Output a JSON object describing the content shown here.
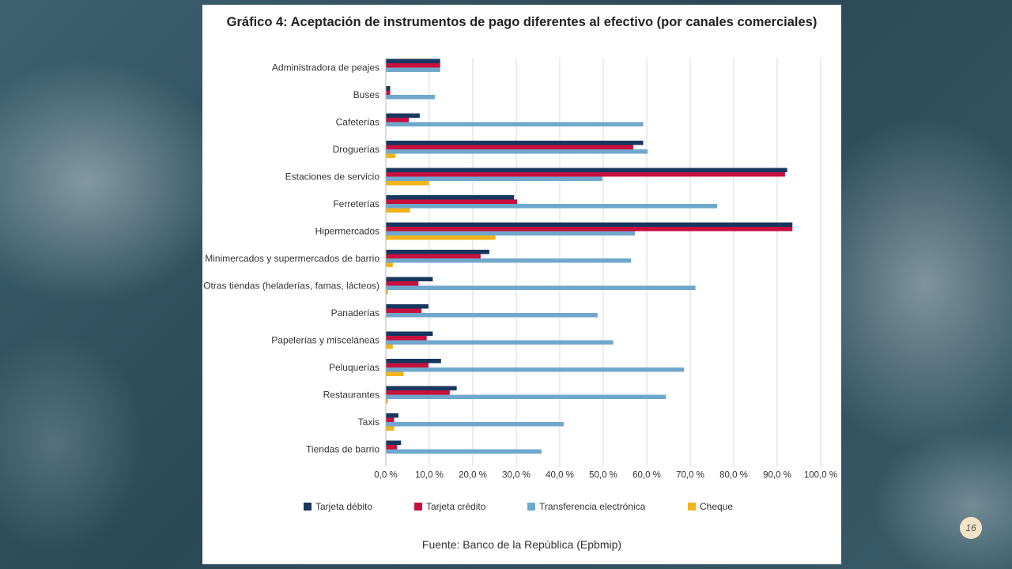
{
  "page_number": "16",
  "source": "Fuente: Banco de la República (Epbmip)",
  "chart_data": {
    "type": "bar",
    "orientation": "horizontal",
    "title": "Gráfico 4: Aceptación de instrumentos de pago diferentes al efectivo (por canales comerciales)",
    "xlim": [
      0,
      100
    ],
    "x_ticks": [
      "0,0 %",
      "10,0 %",
      "20,0 %",
      "30,0 %",
      "40,0 %",
      "50,0 %",
      "60,0 %",
      "70,0 %",
      "80,0 %",
      "90,0 %",
      "100,0 %"
    ],
    "grid": true,
    "legend_position": "bottom",
    "categories": [
      "Administradora de peajes",
      "Buses",
      "Cafeterías",
      "Droguerías",
      "Estaciones de servicio",
      "Ferreterías",
      "Hipermercados",
      "Minimercados y supermercados de barrio",
      "Otras tiendas (heladerías, famas, lácteos)",
      "Panaderías",
      "Papelerías y misceláneas",
      "Peluquerías",
      "Restaurantes",
      "Taxis",
      "Tiendas de barrio"
    ],
    "series": [
      {
        "name": "Tarjeta débito",
        "color": "#17375e",
        "values": [
          12.5,
          1.0,
          7.8,
          59.2,
          92.3,
          29.5,
          93.5,
          23.8,
          10.8,
          9.8,
          10.8,
          12.7,
          16.3,
          2.9,
          3.5
        ]
      },
      {
        "name": "Tarjeta crédito",
        "color": "#c8103e",
        "values": [
          12.5,
          1.0,
          5.3,
          56.9,
          91.8,
          30.2,
          93.5,
          21.8,
          7.5,
          8.2,
          9.4,
          9.8,
          14.7,
          1.9,
          2.6
        ]
      },
      {
        "name": "Transferencia electrónica",
        "color": "#6fa8cc",
        "values": [
          12.5,
          11.3,
          59.2,
          60.2,
          49.8,
          76.2,
          57.3,
          56.4,
          71.2,
          48.7,
          52.3,
          68.6,
          64.4,
          40.9,
          35.8
        ]
      },
      {
        "name": "Cheque",
        "color": "#f3b41a",
        "values": [
          0,
          0,
          0,
          2.2,
          9.9,
          5.6,
          25.2,
          1.6,
          0.5,
          0,
          1.6,
          4.1,
          0.5,
          1.9,
          0
        ]
      }
    ]
  }
}
